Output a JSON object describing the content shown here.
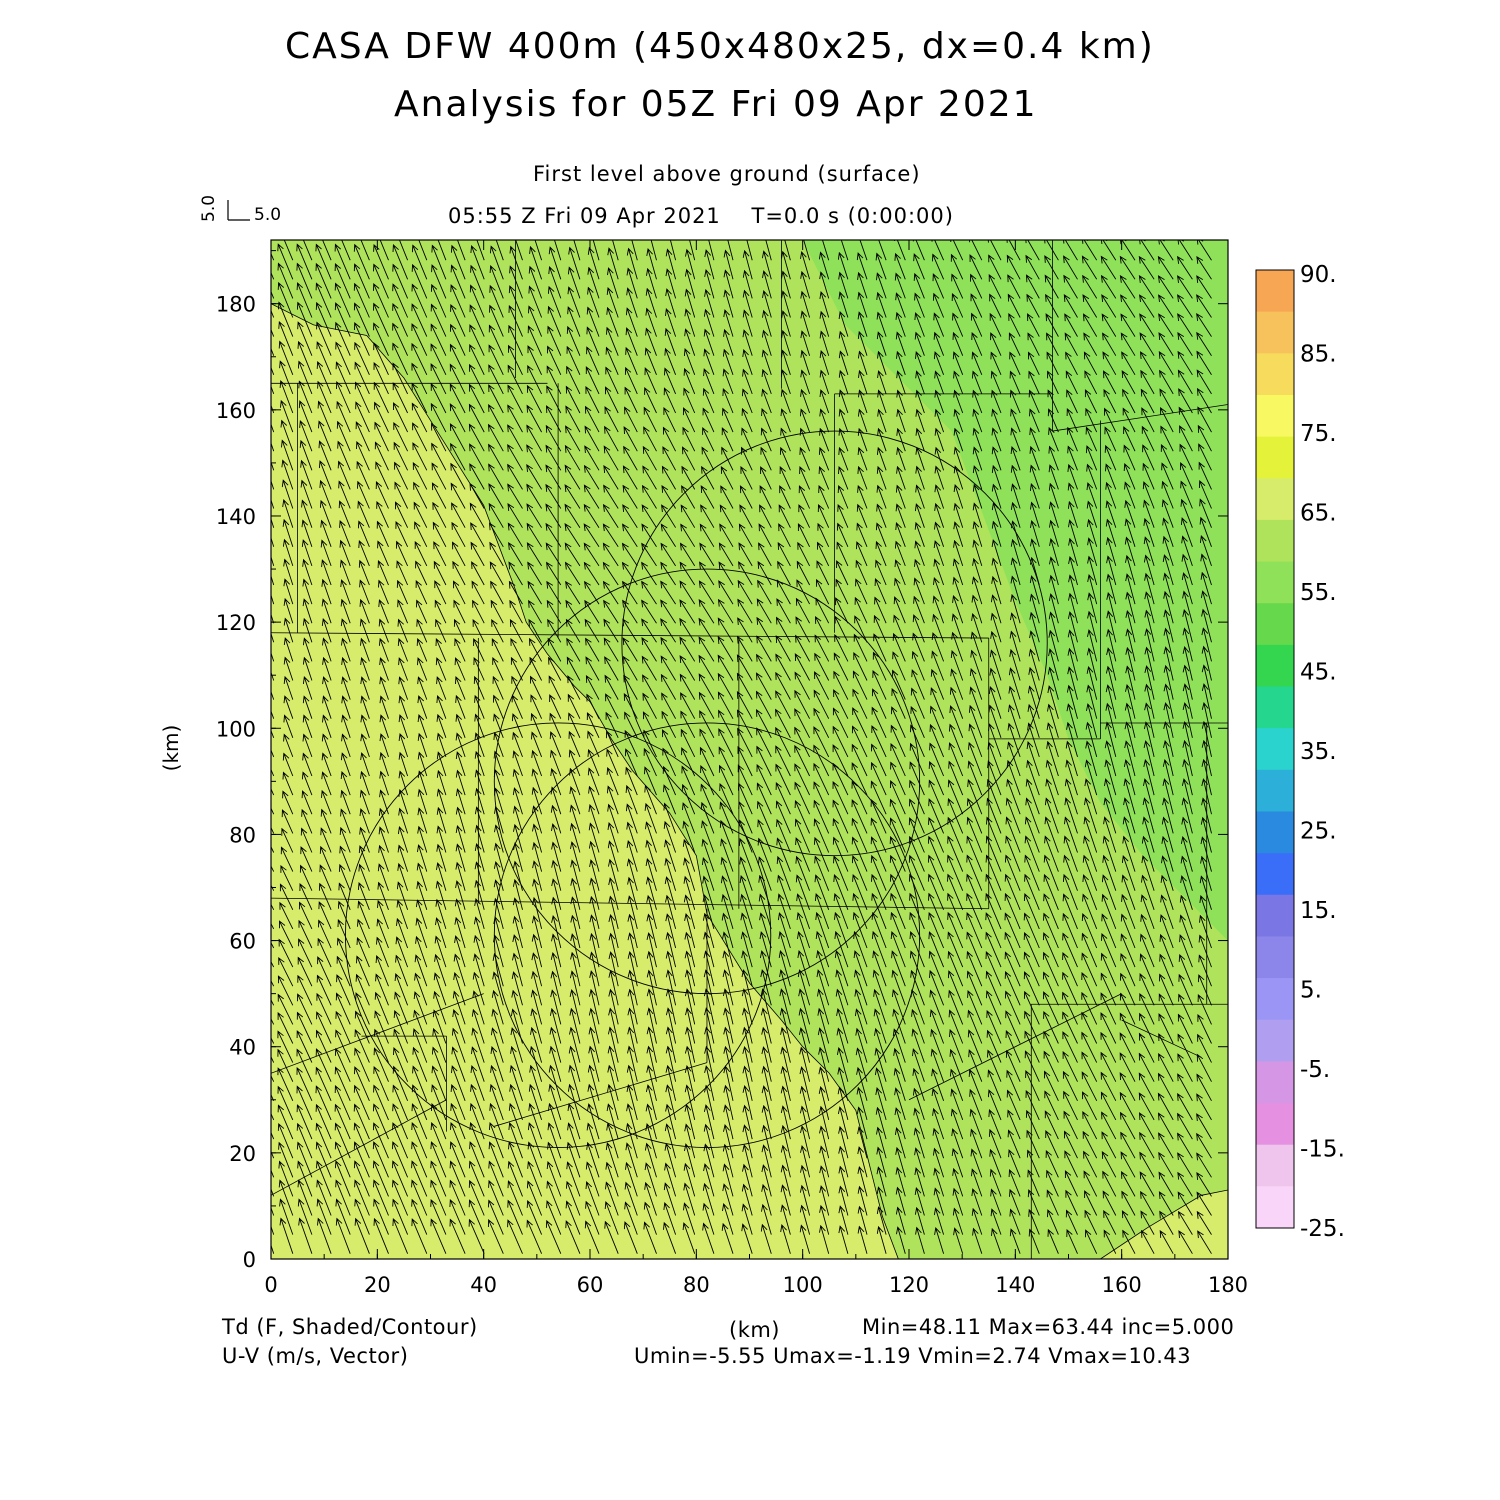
{
  "title": {
    "line1": "CASA DFW 400m (450x480x25, dx=0.4 km)",
    "line2": "Analysis for 05Z Fri 09 Apr 2021"
  },
  "subtitle": {
    "level": "First level above ground (surface)",
    "time": "05:55 Z Fri 09 Apr 2021    T=0.0 s (0:00:00)"
  },
  "vector_key": {
    "u_label": "5.0",
    "v_label": "5.0"
  },
  "footer": {
    "left1": "Td (F, Shaded/Contour)",
    "left2": "U-V (m/s, Vector)",
    "xunit": "(km)",
    "stats1": "Min=48.11 Max=63.44 inc=5.000",
    "stats2": "Umin=-5.55 Umax=-1.19 Vmin=2.74 Vmax=10.43"
  },
  "colorbar": {
    "labels": [
      "90.",
      "85.",
      "75.",
      "65.",
      "55.",
      "45.",
      "35.",
      "25.",
      "15.",
      "5.",
      "-5.",
      "-15.",
      "-25."
    ],
    "colors": [
      "#f7a654",
      "#f7c25c",
      "#f6db5c",
      "#f8f862",
      "#e5f23a",
      "#d8ec6b",
      "#afe35b",
      "#8ee158",
      "#66d84c",
      "#33d64e",
      "#25d68e",
      "#2bd3cf",
      "#2cafd8",
      "#2a8ae0",
      "#3b6ef8",
      "#7a76e3",
      "#8c86ea",
      "#9b95f5",
      "#b09ef0",
      "#d596e5",
      "#e590e1",
      "#efc5ee",
      "#f9d6f9"
    ]
  },
  "chart_data": {
    "type": "heatmap",
    "title": "CASA DFW 400m (450x480x25, dx=0.4 km)",
    "subtitle": "Analysis for 05Z Fri 09 Apr 2021",
    "xlabel": "(km)",
    "ylabel": "(km)",
    "xlim": [
      0,
      180
    ],
    "ylim": [
      0,
      192
    ],
    "xticks": [
      0,
      20,
      40,
      60,
      80,
      100,
      120,
      140,
      160,
      180
    ],
    "yticks": [
      0,
      20,
      40,
      60,
      80,
      100,
      120,
      140,
      160,
      180
    ],
    "field": "Td (F, Shaded/Contour)",
    "vector_field": "U-V (m/s, Vector)",
    "min": 48.11,
    "max": 63.44,
    "inc": 5.0,
    "umin": -5.55,
    "umax": -1.19,
    "vmin": 2.74,
    "vmax": 10.43,
    "shading_colors": {
      "above_55": "#d8ec6b",
      "50_to_55": "#afe35b",
      "below_50": "#8ee158"
    },
    "contour_55_km": [
      [
        0,
        180
      ],
      [
        8,
        176
      ],
      [
        18,
        174
      ],
      [
        25,
        166
      ],
      [
        30,
        158
      ],
      [
        35,
        150
      ],
      [
        40,
        142
      ],
      [
        43,
        134
      ],
      [
        46,
        126
      ],
      [
        48,
        120
      ],
      [
        52,
        114
      ],
      [
        57,
        108
      ],
      [
        60,
        105
      ],
      [
        64,
        98
      ],
      [
        68,
        92
      ],
      [
        75,
        84
      ],
      [
        80,
        76
      ],
      [
        82,
        65
      ],
      [
        90,
        52
      ],
      [
        96,
        45
      ],
      [
        100,
        40
      ],
      [
        105,
        35
      ],
      [
        110,
        28
      ],
      [
        112,
        20
      ],
      [
        115,
        8
      ],
      [
        118,
        0
      ]
    ],
    "contour_50_km": [
      [
        156,
        0
      ],
      [
        165,
        6
      ],
      [
        175,
        12
      ],
      [
        180,
        13
      ]
    ],
    "radar_rings_km": [
      {
        "cx": 54,
        "cy": 61,
        "r": 40
      },
      {
        "cx": 82,
        "cy": 61,
        "r": 40
      },
      {
        "cx": 82,
        "cy": 90,
        "r": 40
      },
      {
        "cx": 106,
        "cy": 116,
        "r": 40
      }
    ],
    "vector_grid_km": {
      "dx": 3.6,
      "dy": 3.6
    },
    "vector_key_ms": 5.0
  }
}
